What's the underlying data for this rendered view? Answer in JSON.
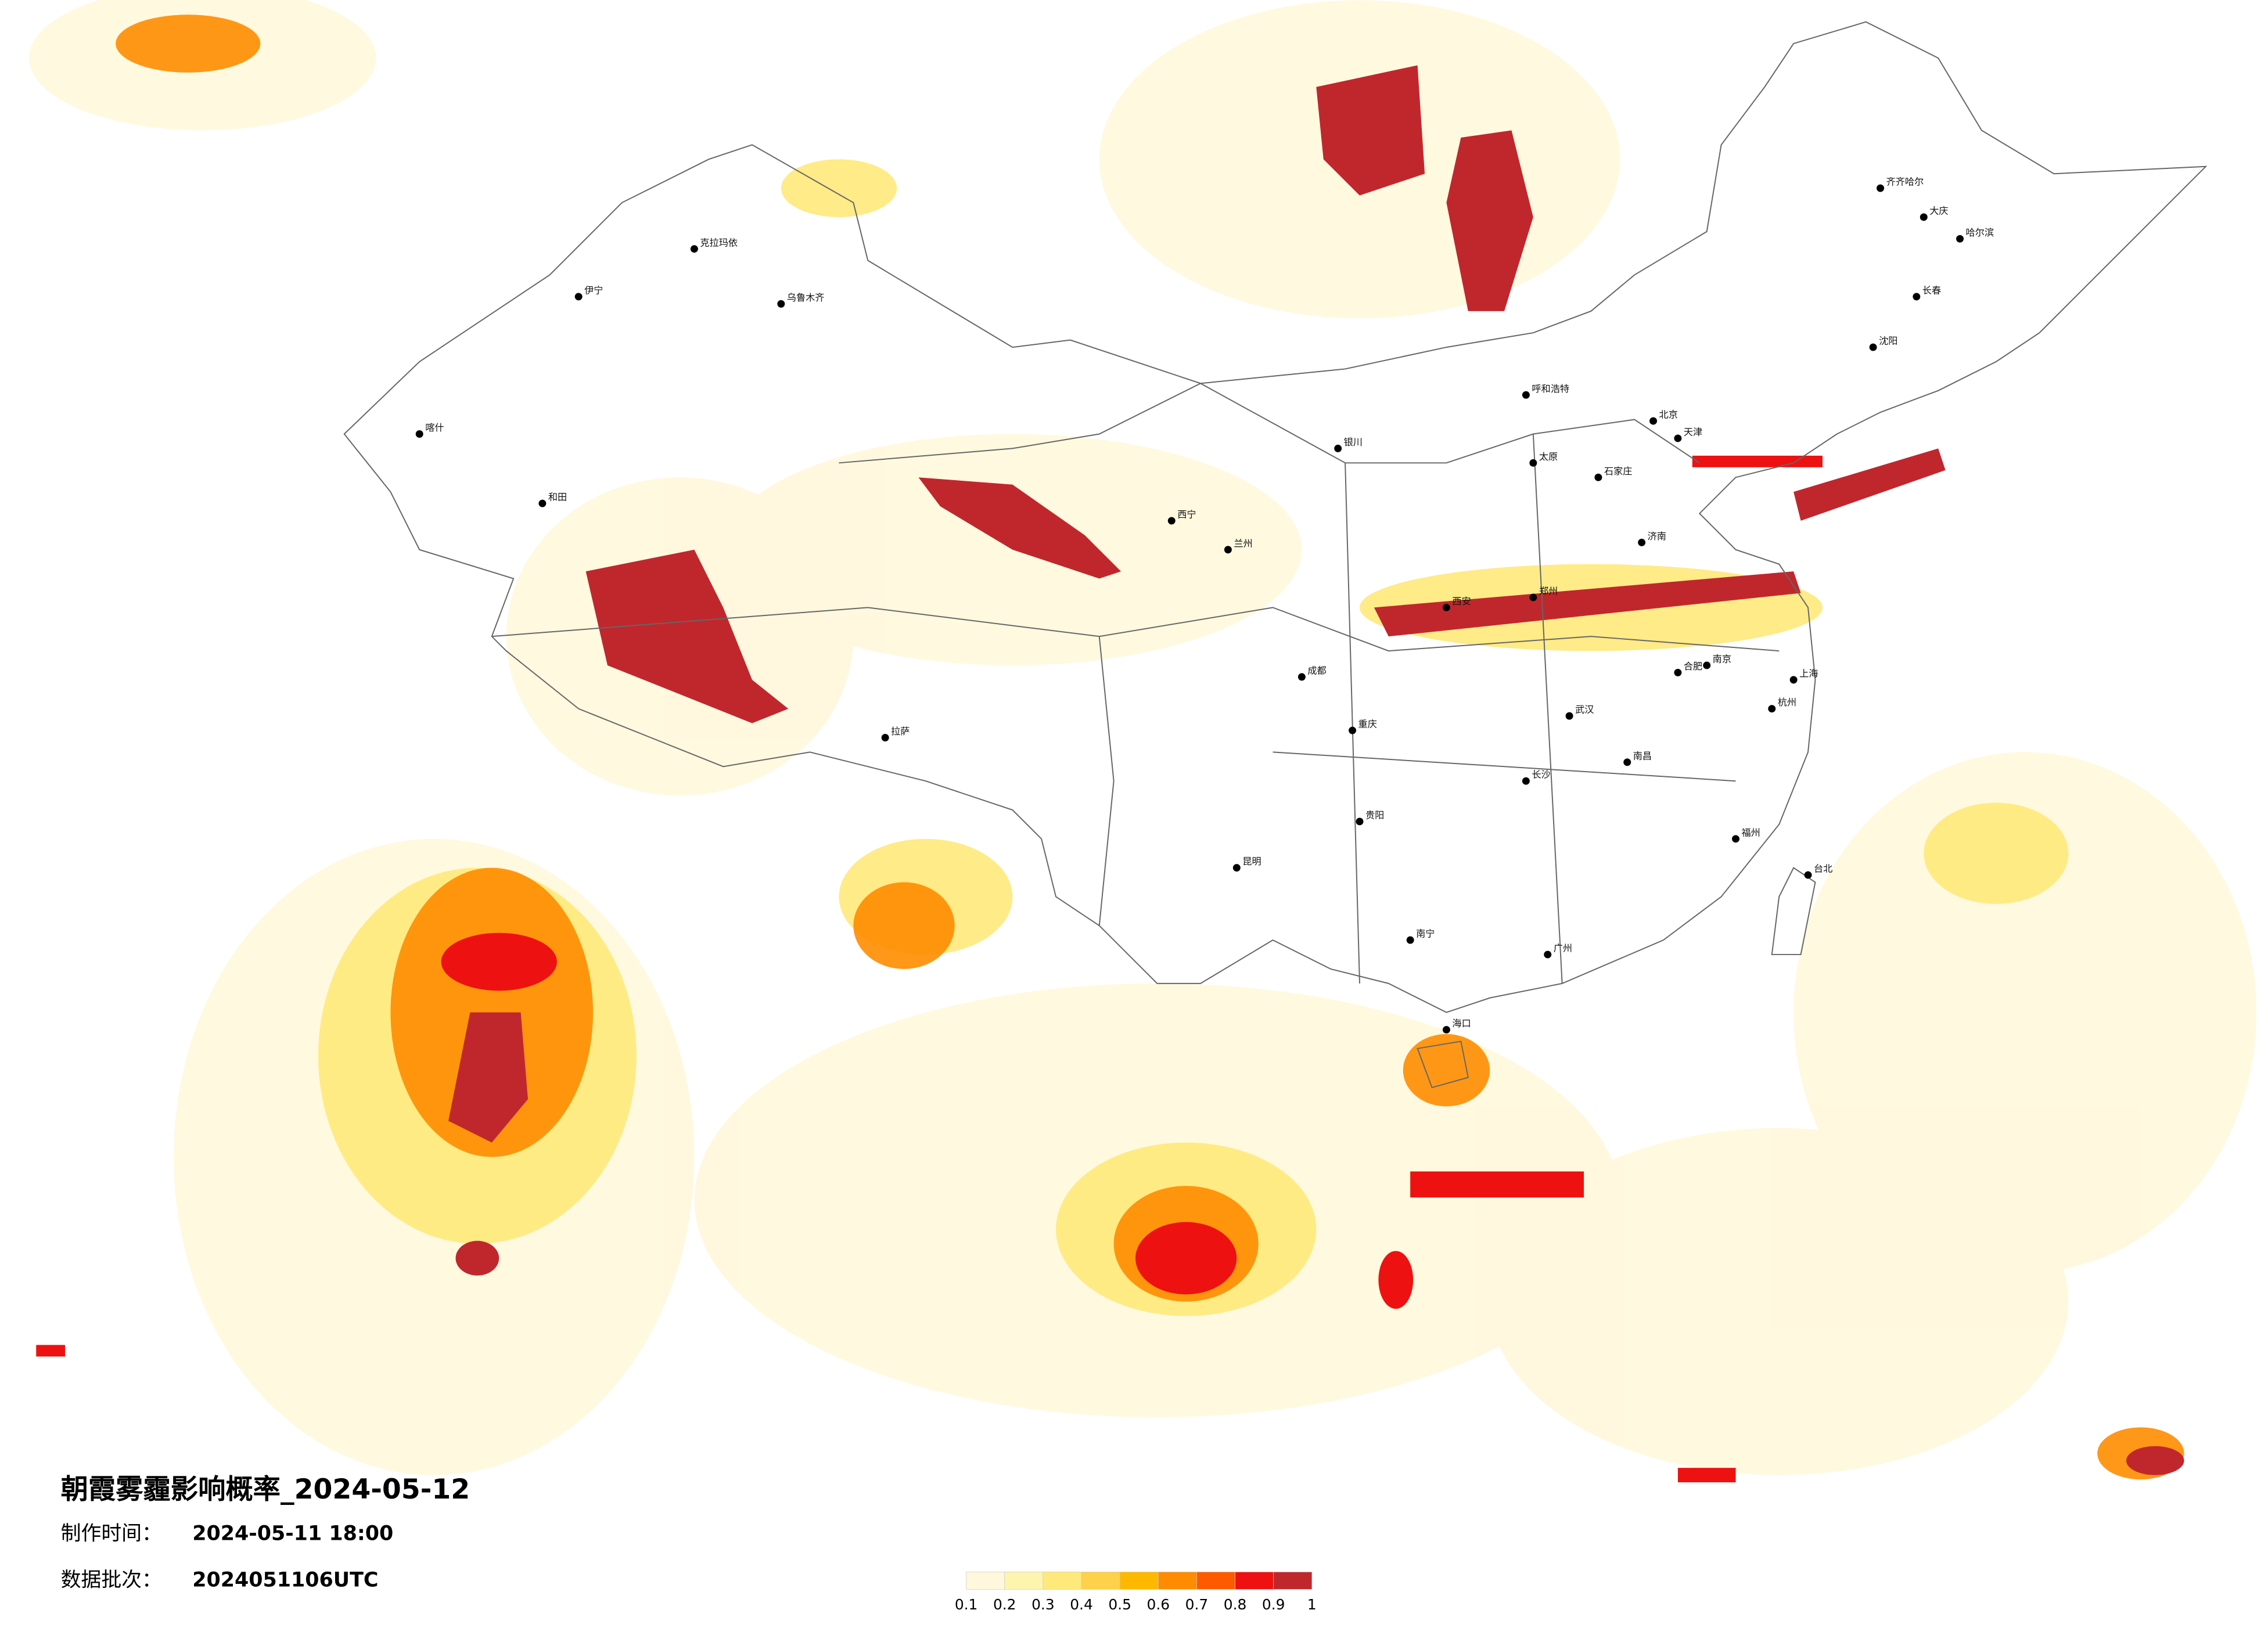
{
  "header": {
    "title": "朝霞雾霾影响概率_2024-05-12",
    "made_label": "制作时间：",
    "made_value": "2024-05-11 18:00",
    "batch_label": "数据批次：",
    "batch_value": "2024051106UTC"
  },
  "legend": {
    "ticks": [
      0.1,
      0.2,
      0.3,
      0.4,
      0.5,
      0.6,
      0.7,
      0.8,
      0.9,
      1
    ],
    "colors": [
      "#fff8dc",
      "#fff4ad",
      "#ffe97a",
      "#ffd04a",
      "#ffb800",
      "#ff8c00",
      "#ff5a00",
      "#ee1111",
      "#c0272d"
    ]
  },
  "cities": [
    "北京",
    "天津",
    "上海",
    "广州",
    "重庆",
    "成都",
    "西安",
    "武汉",
    "乌鲁木齐",
    "拉萨",
    "昆明",
    "贵阳",
    "兰州",
    "哈尔滨",
    "长春",
    "沈阳",
    "呼和浩特",
    "郑州",
    "济南",
    "南京",
    "杭州",
    "福州",
    "南宁",
    "海口",
    "台北",
    "长沙",
    "南昌",
    "合肥",
    "西宁",
    "银川",
    "太原",
    "石家庄",
    "大庆",
    "齐齐哈尔",
    "喀什",
    "和田",
    "伊宁",
    "克拉玛依"
  ]
}
